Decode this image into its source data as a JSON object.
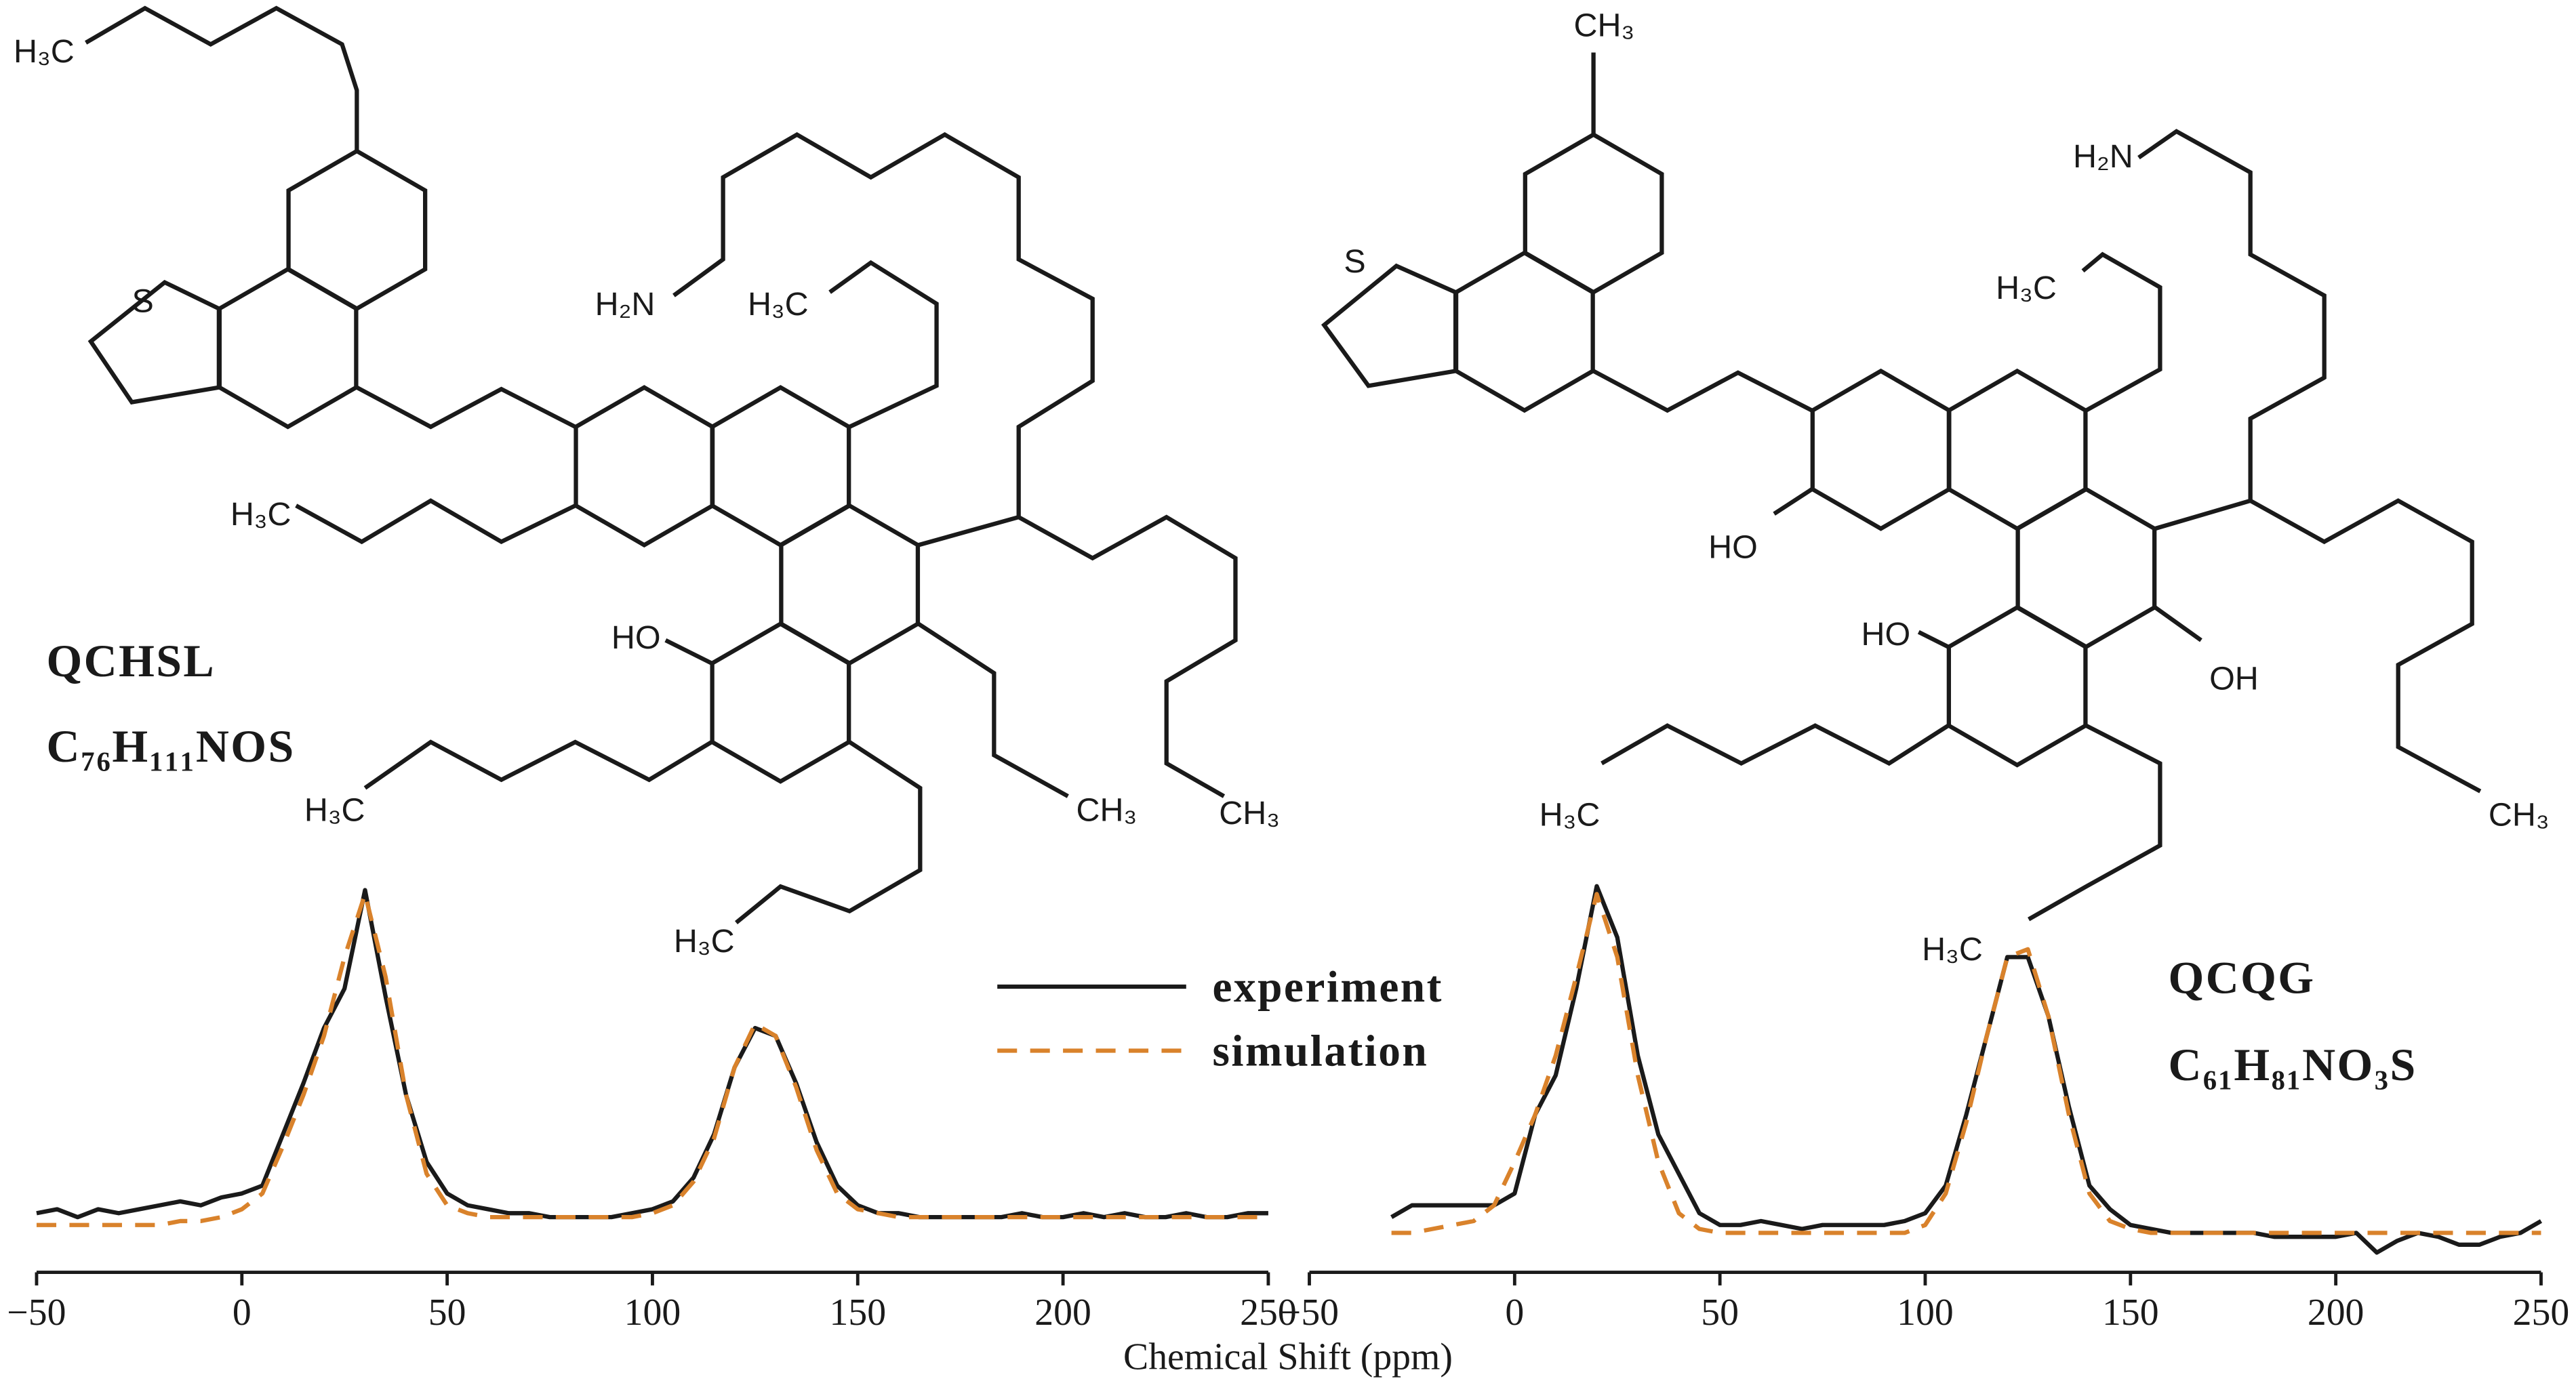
{
  "chart_data": [
    {
      "type": "line",
      "xlabel": "Chemical Shift (ppm)",
      "xlim": [
        -50,
        250
      ],
      "xticks": [
        {
          "value": -50,
          "label": "−50"
        },
        0,
        50,
        100,
        150,
        200,
        250
      ],
      "ylim": [
        0,
        1
      ],
      "x": [
        -50,
        -45,
        -40,
        -35,
        -30,
        -25,
        -20,
        -15,
        -10,
        -5,
        0,
        5,
        10,
        15,
        20,
        25,
        30,
        35,
        40,
        45,
        50,
        55,
        60,
        65,
        70,
        75,
        80,
        85,
        90,
        95,
        100,
        105,
        110,
        115,
        120,
        125,
        130,
        135,
        140,
        145,
        150,
        155,
        160,
        165,
        170,
        175,
        180,
        185,
        190,
        195,
        200,
        205,
        210,
        215,
        220,
        225,
        230,
        235,
        240,
        245,
        250
      ],
      "series": [
        {
          "name": "experiment",
          "color": "#1a1a1a",
          "line_style": "solid",
          "values": [
            0.15,
            0.16,
            0.14,
            0.16,
            0.15,
            0.16,
            0.17,
            0.18,
            0.17,
            0.19,
            0.2,
            0.22,
            0.35,
            0.48,
            0.62,
            0.72,
            0.97,
            0.7,
            0.45,
            0.28,
            0.2,
            0.17,
            0.16,
            0.15,
            0.15,
            0.14,
            0.14,
            0.14,
            0.14,
            0.15,
            0.16,
            0.18,
            0.24,
            0.35,
            0.52,
            0.62,
            0.6,
            0.48,
            0.33,
            0.22,
            0.17,
            0.15,
            0.15,
            0.14,
            0.14,
            0.14,
            0.14,
            0.14,
            0.15,
            0.14,
            0.14,
            0.15,
            0.14,
            0.15,
            0.14,
            0.14,
            0.15,
            0.14,
            0.14,
            0.15,
            0.15
          ]
        },
        {
          "name": "simulation",
          "color": "#d9822b",
          "line_style": "dashed",
          "values": [
            0.12,
            0.12,
            0.12,
            0.12,
            0.12,
            0.12,
            0.12,
            0.13,
            0.13,
            0.14,
            0.16,
            0.2,
            0.32,
            0.45,
            0.6,
            0.8,
            0.96,
            0.75,
            0.45,
            0.25,
            0.17,
            0.15,
            0.14,
            0.14,
            0.14,
            0.14,
            0.14,
            0.14,
            0.14,
            0.14,
            0.15,
            0.17,
            0.23,
            0.34,
            0.52,
            0.63,
            0.6,
            0.47,
            0.31,
            0.2,
            0.16,
            0.15,
            0.14,
            0.14,
            0.14,
            0.14,
            0.14,
            0.14,
            0.14,
            0.14,
            0.14,
            0.14,
            0.14,
            0.14,
            0.14,
            0.14,
            0.14,
            0.14,
            0.14,
            0.14,
            0.14
          ]
        }
      ]
    },
    {
      "type": "line",
      "xlim": [
        -50,
        250
      ],
      "xticks": [
        {
          "value": -50,
          "label": "−50"
        },
        0,
        50,
        100,
        150,
        200,
        250
      ],
      "ylim": [
        0,
        1
      ],
      "x": [
        -30,
        -25,
        -20,
        -15,
        -10,
        -5,
        0,
        5,
        10,
        15,
        20,
        25,
        30,
        35,
        40,
        45,
        50,
        55,
        60,
        65,
        70,
        75,
        80,
        85,
        90,
        95,
        100,
        105,
        110,
        115,
        120,
        125,
        130,
        135,
        140,
        145,
        150,
        155,
        160,
        165,
        170,
        175,
        180,
        185,
        190,
        195,
        200,
        205,
        210,
        215,
        220,
        225,
        230,
        235,
        240,
        245,
        250
      ],
      "series": [
        {
          "color": "#1a1a1a",
          "line_style": "solid",
          "values": [
            0.14,
            0.17,
            0.17,
            0.17,
            0.17,
            0.17,
            0.2,
            0.4,
            0.5,
            0.72,
            0.98,
            0.85,
            0.55,
            0.35,
            0.25,
            0.15,
            0.12,
            0.12,
            0.13,
            0.12,
            0.11,
            0.12,
            0.12,
            0.12,
            0.12,
            0.13,
            0.15,
            0.22,
            0.4,
            0.6,
            0.8,
            0.8,
            0.65,
            0.42,
            0.22,
            0.16,
            0.12,
            0.11,
            0.1,
            0.1,
            0.1,
            0.1,
            0.1,
            0.09,
            0.09,
            0.09,
            0.09,
            0.1,
            0.05,
            0.08,
            0.1,
            0.09,
            0.07,
            0.07,
            0.09,
            0.1,
            0.13
          ]
        },
        {
          "color": "#d9822b",
          "line_style": "dashed",
          "values": [
            0.1,
            0.1,
            0.11,
            0.12,
            0.13,
            0.17,
            0.28,
            0.4,
            0.55,
            0.75,
            0.96,
            0.8,
            0.5,
            0.28,
            0.15,
            0.11,
            0.1,
            0.1,
            0.1,
            0.1,
            0.1,
            0.1,
            0.1,
            0.1,
            0.1,
            0.1,
            0.12,
            0.2,
            0.38,
            0.6,
            0.8,
            0.82,
            0.65,
            0.4,
            0.2,
            0.13,
            0.11,
            0.1,
            0.1,
            0.1,
            0.1,
            0.1,
            0.1,
            0.1,
            0.1,
            0.1,
            0.1,
            0.1,
            0.1,
            0.1,
            0.1,
            0.1,
            0.1,
            0.1,
            0.1,
            0.1,
            0.1
          ]
        }
      ]
    }
  ],
  "molecules": [
    {
      "name": "QCHSL",
      "formula": "C₇₆H₁₁₁NOS",
      "atom_labels": [
        "H₃C",
        "S",
        "H₂N",
        "H₃C",
        "H₃C",
        "HO",
        "H₃C",
        "CH₃",
        "CH₃",
        "H₃C"
      ]
    },
    {
      "name": "QCQG",
      "formula": "C₆₁H₈₁NO₃S",
      "atom_labels": [
        "CH₃",
        "S",
        "H₂N",
        "H₃C",
        "HO",
        "HO",
        "OH",
        "H₃C",
        "CH₃",
        "H₃C"
      ]
    }
  ]
}
